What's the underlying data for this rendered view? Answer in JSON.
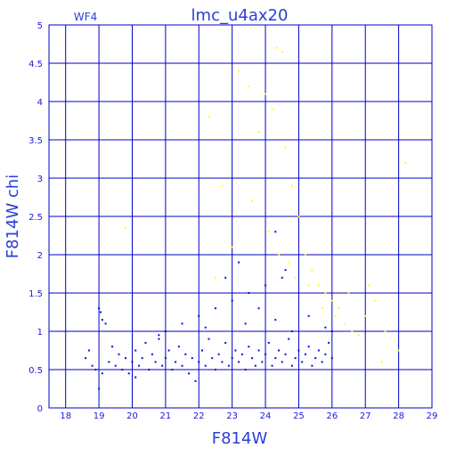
{
  "chart_data": {
    "type": "scatter",
    "title": "lmc_u4ax20",
    "corner_label": "WF4",
    "xlabel": "F814W",
    "ylabel": "F814W  chi",
    "xlim": [
      17.5,
      29
    ],
    "ylim": [
      0,
      5
    ],
    "x_ticks": [
      18,
      19,
      20,
      21,
      22,
      23,
      24,
      25,
      26,
      27,
      28,
      29
    ],
    "y_ticks": [
      0,
      0.5,
      1,
      1.5,
      2,
      2.5,
      3,
      3.5,
      4,
      4.5,
      5
    ],
    "x_tick_labels": [
      "18",
      "19",
      "20",
      "21",
      "22",
      "23",
      "24",
      "25",
      "26",
      "27",
      "28",
      "29"
    ],
    "y_tick_labels": [
      "0",
      "0.5",
      "1",
      "1.5",
      "2",
      "2.5",
      "3",
      "3.5",
      "4",
      "4.5",
      "5"
    ],
    "grid": true,
    "colors": {
      "frame": "#0000c8",
      "grid": "#0000c8",
      "text": "#2a3fd8",
      "blue_points": "#0a0adc",
      "yellow_points": "#ffff00"
    },
    "series": [
      {
        "color": "#0a0adc",
        "points": [
          [
            18.6,
            0.65
          ],
          [
            18.7,
            0.75
          ],
          [
            18.8,
            0.55
          ],
          [
            18.9,
            0.5
          ],
          [
            19.0,
            0.25
          ],
          [
            19.0,
            1.3
          ],
          [
            19.05,
            1.25
          ],
          [
            19.1,
            1.15
          ],
          [
            19.2,
            1.1
          ],
          [
            19.1,
            0.45
          ],
          [
            19.3,
            0.6
          ],
          [
            19.4,
            0.8
          ],
          [
            19.5,
            0.55
          ],
          [
            19.6,
            0.7
          ],
          [
            19.7,
            0.5
          ],
          [
            19.8,
            0.65
          ],
          [
            19.9,
            0.45
          ],
          [
            20.0,
            0.6
          ],
          [
            20.1,
            0.75
          ],
          [
            20.2,
            0.55
          ],
          [
            20.3,
            0.65
          ],
          [
            20.4,
            0.85
          ],
          [
            20.5,
            0.5
          ],
          [
            20.6,
            0.7
          ],
          [
            20.7,
            0.6
          ],
          [
            20.8,
            0.9
          ],
          [
            20.9,
            0.55
          ],
          [
            21.0,
            0.65
          ],
          [
            21.1,
            0.75
          ],
          [
            21.2,
            0.5
          ],
          [
            21.3,
            0.6
          ],
          [
            21.4,
            0.8
          ],
          [
            21.5,
            0.55
          ],
          [
            21.6,
            0.7
          ],
          [
            21.7,
            0.45
          ],
          [
            21.8,
            0.65
          ],
          [
            21.9,
            0.35
          ],
          [
            22.0,
            0.6
          ],
          [
            22.1,
            0.75
          ],
          [
            22.2,
            0.55
          ],
          [
            22.3,
            0.9
          ],
          [
            22.4,
            0.65
          ],
          [
            22.5,
            0.5
          ],
          [
            22.6,
            0.7
          ],
          [
            22.7,
            0.6
          ],
          [
            22.8,
            0.85
          ],
          [
            22.9,
            0.55
          ],
          [
            23.0,
            0.65
          ],
          [
            23.1,
            0.75
          ],
          [
            23.2,
            0.6
          ],
          [
            23.3,
            0.7
          ],
          [
            23.4,
            0.5
          ],
          [
            23.5,
            0.8
          ],
          [
            23.6,
            0.65
          ],
          [
            23.7,
            0.55
          ],
          [
            23.8,
            0.75
          ],
          [
            23.9,
            0.6
          ],
          [
            24.0,
            0.7
          ],
          [
            24.1,
            0.85
          ],
          [
            24.2,
            0.55
          ],
          [
            24.3,
            0.65
          ],
          [
            24.4,
            0.75
          ],
          [
            24.5,
            0.6
          ],
          [
            24.6,
            0.7
          ],
          [
            24.7,
            0.9
          ],
          [
            24.8,
            0.55
          ],
          [
            24.9,
            0.65
          ],
          [
            25.0,
            0.75
          ],
          [
            25.1,
            0.6
          ],
          [
            25.2,
            0.7
          ],
          [
            25.3,
            0.8
          ],
          [
            25.4,
            0.55
          ],
          [
            25.5,
            0.65
          ],
          [
            25.6,
            0.75
          ],
          [
            25.7,
            0.6
          ],
          [
            25.8,
            0.7
          ],
          [
            25.9,
            0.85
          ],
          [
            26.0,
            0.65
          ],
          [
            21.0,
            1.0
          ],
          [
            21.5,
            1.1
          ],
          [
            22.0,
            1.2
          ],
          [
            22.5,
            1.3
          ],
          [
            23.0,
            1.4
          ],
          [
            23.5,
            1.5
          ],
          [
            24.0,
            1.6
          ],
          [
            24.5,
            1.7
          ],
          [
            22.8,
            1.7
          ],
          [
            23.2,
            1.9
          ],
          [
            23.8,
            1.3
          ],
          [
            24.3,
            1.15
          ],
          [
            24.8,
            1.0
          ],
          [
            25.3,
            1.2
          ],
          [
            25.8,
            1.05
          ],
          [
            26.0,
            1.0
          ],
          [
            24.3,
            2.3
          ],
          [
            24.6,
            1.8
          ],
          [
            23.4,
            1.1
          ],
          [
            22.2,
            1.05
          ],
          [
            20.8,
            0.95
          ],
          [
            20.1,
            0.4
          ]
        ]
      },
      {
        "color": "#ffff00",
        "points": [
          [
            19.8,
            2.35
          ],
          [
            22.3,
            3.8
          ],
          [
            22.7,
            2.9
          ],
          [
            23.2,
            4.4
          ],
          [
            23.5,
            4.2
          ],
          [
            23.8,
            3.6
          ],
          [
            24.0,
            4.1
          ],
          [
            24.2,
            3.9
          ],
          [
            24.35,
            4.7
          ],
          [
            24.5,
            4.65
          ],
          [
            24.6,
            3.4
          ],
          [
            24.8,
            2.9
          ],
          [
            25.0,
            2.5
          ],
          [
            24.4,
            2.0
          ],
          [
            24.7,
            1.9
          ],
          [
            25.2,
            2.0
          ],
          [
            25.4,
            1.8
          ],
          [
            25.6,
            1.6
          ],
          [
            25.8,
            1.5
          ],
          [
            26.0,
            1.4
          ],
          [
            26.2,
            1.3
          ],
          [
            26.4,
            1.1
          ],
          [
            26.6,
            1.0
          ],
          [
            26.8,
            0.95
          ],
          [
            27.0,
            1.2
          ],
          [
            27.3,
            1.4
          ],
          [
            27.6,
            1.0
          ],
          [
            28.0,
            0.75
          ],
          [
            28.2,
            3.2
          ],
          [
            27.5,
            0.6
          ],
          [
            22.5,
            1.7
          ],
          [
            23.0,
            2.1
          ],
          [
            23.6,
            2.7
          ],
          [
            24.1,
            2.3
          ],
          [
            24.9,
            1.7
          ],
          [
            25.3,
            1.6
          ],
          [
            25.7,
            1.3
          ],
          [
            26.1,
            1.2
          ],
          [
            26.5,
            1.5
          ],
          [
            27.1,
            1.6
          ]
        ]
      }
    ]
  }
}
